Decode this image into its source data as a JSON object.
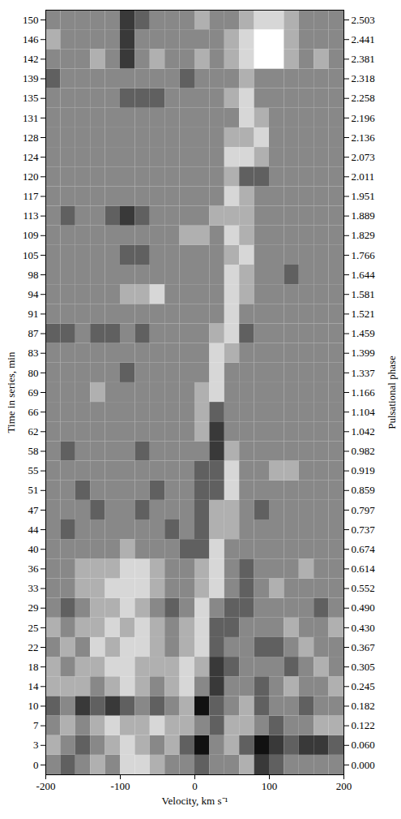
{
  "chart_data": {
    "type": "heatmap",
    "x_label": "Velocity, km s⁻¹",
    "y_label": "Time in series, min",
    "y2_label": "Pulsational phase",
    "xlim": [
      -200,
      200
    ],
    "xticks": [
      -200,
      -100,
      0,
      100,
      200
    ],
    "categories": [
      0,
      3,
      7,
      10,
      14,
      18,
      22,
      25,
      29,
      33,
      36,
      40,
      44,
      47,
      51,
      55,
      58,
      62,
      66,
      69,
      80,
      83,
      87,
      91,
      94,
      98,
      105,
      109,
      113,
      117,
      120,
      124,
      128,
      131,
      135,
      139,
      142,
      146,
      150
    ],
    "phase_labels": [
      "0.000",
      "0.060",
      "0.122",
      "0.182",
      "0.245",
      "0.305",
      "0.367",
      "0.430",
      "0.490",
      "0.552",
      "0.614",
      "0.674",
      "0.737",
      "0.797",
      "0.859",
      "0.919",
      "0.982",
      "1.042",
      "1.104",
      "1.166",
      "1.337",
      "1.399",
      "1.459",
      "1.521",
      "1.581",
      "1.644",
      "1.766",
      "1.829",
      "1.889",
      "1.951",
      "2.011",
      "2.073",
      "2.136",
      "2.196",
      "2.258",
      "2.318",
      "2.381",
      "2.441",
      "2.503"
    ],
    "velocity_bins": [
      -200,
      -180,
      -160,
      -140,
      -120,
      -100,
      -80,
      -60,
      -40,
      -20,
      0,
      20,
      40,
      60,
      80,
      100,
      120,
      140,
      160,
      180,
      200
    ],
    "zlim": [
      -3,
      3
    ],
    "cells": [
      [
        0,
        -1,
        0,
        1,
        0,
        2,
        2,
        1,
        0,
        0,
        -1,
        0,
        0,
        1,
        -2,
        -1,
        0,
        0,
        0,
        0
      ],
      [
        1,
        0,
        -1,
        0,
        1,
        2,
        1,
        0,
        1,
        -1,
        -3,
        0,
        1,
        -1,
        -3,
        -2,
        -1,
        -2,
        -2,
        -1
      ],
      [
        0,
        1,
        0,
        1,
        2,
        1,
        1,
        2,
        1,
        1,
        0,
        -1,
        1,
        1,
        0,
        -1,
        0,
        0,
        1,
        1
      ],
      [
        -1,
        0,
        -2,
        -1,
        -2,
        -1,
        0,
        -1,
        0,
        1,
        -3,
        -1,
        0,
        1,
        -1,
        0,
        0,
        -1,
        0,
        0
      ],
      [
        1,
        1,
        1,
        0,
        1,
        2,
        1,
        0,
        1,
        2,
        0,
        -2,
        0,
        0,
        -1,
        0,
        1,
        0,
        0,
        1
      ],
      [
        1,
        0,
        1,
        1,
        2,
        2,
        1,
        1,
        1,
        2,
        1,
        -2,
        -1,
        0,
        0,
        0,
        -1,
        0,
        1,
        0
      ],
      [
        0,
        1,
        0,
        2,
        1,
        2,
        2,
        1,
        0,
        1,
        2,
        -1,
        0,
        0,
        -1,
        -1,
        0,
        1,
        0,
        0
      ],
      [
        1,
        0,
        1,
        1,
        2,
        1,
        2,
        1,
        0,
        1,
        2,
        -1,
        -1,
        0,
        0,
        0,
        1,
        0,
        0,
        1
      ],
      [
        0,
        -1,
        0,
        1,
        1,
        2,
        1,
        0,
        -1,
        0,
        2,
        0,
        -1,
        -1,
        0,
        0,
        0,
        0,
        -1,
        0
      ],
      [
        0,
        0,
        1,
        1,
        2,
        2,
        2,
        1,
        0,
        0,
        1,
        2,
        0,
        -1,
        0,
        1,
        0,
        0,
        0,
        0
      ],
      [
        0,
        0,
        1,
        1,
        1,
        2,
        2,
        1,
        0,
        0,
        1,
        2,
        0,
        -1,
        0,
        0,
        0,
        1,
        0,
        0
      ],
      [
        0,
        0,
        0,
        0,
        0,
        1,
        0,
        0,
        0,
        -1,
        -1,
        2,
        0,
        0,
        0,
        0,
        0,
        0,
        0,
        0
      ],
      [
        0,
        -1,
        0,
        0,
        0,
        0,
        0,
        0,
        -1,
        0,
        -1,
        1,
        1,
        0,
        0,
        0,
        0,
        0,
        0,
        0
      ],
      [
        0,
        0,
        0,
        -1,
        0,
        0,
        -1,
        0,
        0,
        0,
        -1,
        1,
        1,
        0,
        -1,
        0,
        0,
        0,
        0,
        0
      ],
      [
        0,
        0,
        -1,
        0,
        0,
        0,
        0,
        -1,
        0,
        0,
        -1,
        -1,
        2,
        0,
        0,
        0,
        0,
        0,
        0,
        0
      ],
      [
        0,
        0,
        0,
        0,
        0,
        0,
        0,
        0,
        0,
        0,
        -1,
        -1,
        2,
        0,
        0,
        1,
        1,
        0,
        0,
        0
      ],
      [
        0,
        -1,
        0,
        0,
        0,
        0,
        -1,
        0,
        0,
        0,
        0,
        -2,
        1,
        0,
        0,
        0,
        0,
        0,
        0,
        0
      ],
      [
        0,
        0,
        0,
        0,
        0,
        0,
        0,
        0,
        0,
        0,
        1,
        -2,
        0,
        0,
        0,
        0,
        0,
        0,
        0,
        0
      ],
      [
        0,
        0,
        0,
        0,
        0,
        0,
        0,
        0,
        0,
        0,
        1,
        -1,
        0,
        0,
        0,
        0,
        0,
        0,
        0,
        0
      ],
      [
        0,
        0,
        0,
        1,
        0,
        0,
        0,
        0,
        0,
        0,
        1,
        2,
        0,
        0,
        0,
        0,
        0,
        0,
        0,
        0
      ],
      [
        0,
        0,
        0,
        0,
        0,
        -1,
        0,
        0,
        0,
        0,
        0,
        2,
        0,
        0,
        0,
        0,
        0,
        0,
        0,
        0
      ],
      [
        0,
        0,
        0,
        0,
        0,
        0,
        0,
        0,
        0,
        0,
        0,
        2,
        1,
        0,
        0,
        0,
        0,
        0,
        0,
        0
      ],
      [
        -1,
        -1,
        0,
        -1,
        -1,
        0,
        -1,
        0,
        0,
        0,
        0,
        1,
        2,
        -1,
        0,
        0,
        0,
        0,
        0,
        0
      ],
      [
        0,
        0,
        0,
        0,
        0,
        0,
        0,
        0,
        0,
        0,
        0,
        0,
        2,
        0,
        0,
        0,
        0,
        0,
        0,
        0
      ],
      [
        0,
        0,
        0,
        0,
        0,
        1,
        1,
        2,
        0,
        0,
        0,
        0,
        2,
        1,
        0,
        0,
        0,
        0,
        0,
        0
      ],
      [
        0,
        0,
        0,
        0,
        0,
        0,
        0,
        0,
        0,
        0,
        0,
        0,
        2,
        1,
        0,
        0,
        -1,
        0,
        0,
        0
      ],
      [
        0,
        0,
        0,
        0,
        0,
        -1,
        -1,
        0,
        0,
        0,
        0,
        0,
        1,
        2,
        0,
        0,
        0,
        0,
        0,
        0
      ],
      [
        0,
        0,
        0,
        0,
        0,
        0,
        0,
        0,
        0,
        1,
        1,
        0,
        2,
        1,
        0,
        0,
        0,
        0,
        0,
        0
      ],
      [
        0,
        -1,
        0,
        0,
        -1,
        -2,
        -1,
        0,
        0,
        0,
        0,
        1,
        1,
        1,
        0,
        0,
        0,
        0,
        0,
        0
      ],
      [
        0,
        0,
        0,
        0,
        0,
        0,
        0,
        0,
        0,
        0,
        0,
        0,
        2,
        1,
        0,
        0,
        0,
        0,
        0,
        0
      ],
      [
        0,
        0,
        0,
        0,
        0,
        0,
        0,
        0,
        0,
        0,
        0,
        0,
        1,
        -1,
        -1,
        0,
        0,
        0,
        0,
        0
      ],
      [
        0,
        0,
        0,
        0,
        0,
        0,
        0,
        0,
        0,
        0,
        0,
        0,
        2,
        2,
        1,
        0,
        0,
        0,
        0,
        0
      ],
      [
        0,
        0,
        0,
        0,
        0,
        0,
        0,
        0,
        0,
        0,
        0,
        0,
        1,
        1,
        2,
        0,
        0,
        0,
        0,
        0
      ],
      [
        0,
        0,
        0,
        0,
        0,
        0,
        0,
        0,
        0,
        0,
        0,
        0,
        0,
        2,
        1,
        0,
        0,
        0,
        0,
        0
      ],
      [
        0,
        0,
        0,
        0,
        0,
        -1,
        -1,
        -1,
        0,
        0,
        0,
        0,
        1,
        2,
        0,
        0,
        0,
        0,
        0,
        0
      ],
      [
        -1,
        0,
        0,
        0,
        0,
        0,
        0,
        0,
        0,
        -1,
        0,
        0,
        0,
        1,
        0,
        0,
        0,
        0,
        0,
        0
      ],
      [
        0,
        0,
        0,
        1,
        0,
        -2,
        0,
        1,
        0,
        0,
        1,
        0,
        1,
        2,
        3,
        3,
        1,
        0,
        1,
        0
      ],
      [
        1,
        0,
        0,
        0,
        0,
        -2,
        0,
        0,
        0,
        0,
        0,
        0,
        1,
        2,
        3,
        3,
        1,
        0,
        0,
        0
      ],
      [
        0,
        0,
        0,
        0,
        0,
        -2,
        -1,
        0,
        0,
        0,
        1,
        0,
        0,
        1,
        2,
        2,
        1,
        0,
        0,
        0
      ]
    ]
  }
}
